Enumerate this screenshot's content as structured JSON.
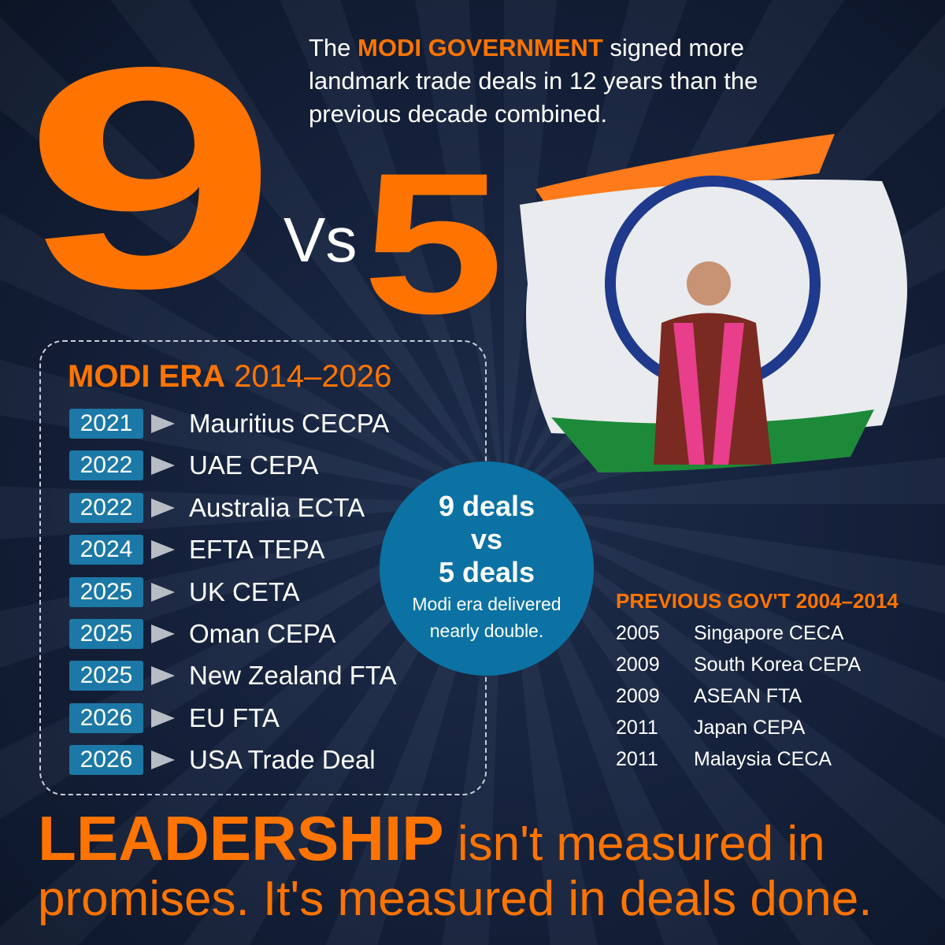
{
  "headline": {
    "big_number_left": "9",
    "vs": "Vs",
    "big_number_right": "5"
  },
  "intro": {
    "prefix": "The ",
    "highlight": "MODI GOVERNMENT",
    "suffix": " signed more landmark trade deals in 12 years than the previous decade combined."
  },
  "modi_era": {
    "title_bold": "MODI ERA",
    "title_years": "2014–2026",
    "deals": [
      {
        "year": "2021",
        "name": "Mauritius CECPA"
      },
      {
        "year": "2022",
        "name": "UAE CEPA"
      },
      {
        "year": "2022",
        "name": "Australia ECTA"
      },
      {
        "year": "2024",
        "name": "EFTA TEPA"
      },
      {
        "year": "2025",
        "name": "UK CETA"
      },
      {
        "year": "2025",
        "name": "Oman CEPA"
      },
      {
        "year": "2025",
        "name": "New Zealand FTA"
      },
      {
        "year": "2026",
        "name": "EU FTA"
      },
      {
        "year": "2026",
        "name": "USA Trade Deal"
      }
    ]
  },
  "comparison": {
    "line1": "9 deals",
    "line2": "vs",
    "line3": "5 deals",
    "caption1": "Modi era delivered",
    "caption2": "nearly double."
  },
  "previous": {
    "title": "PREVIOUS GOV'T 2004–2014",
    "deals": [
      {
        "year": "2005",
        "name": "Singapore CECA"
      },
      {
        "year": "2009",
        "name": "South Korea CEPA"
      },
      {
        "year": "2009",
        "name": "ASEAN FTA"
      },
      {
        "year": "2011",
        "name": "Japan CEPA"
      },
      {
        "year": "2011",
        "name": "Malaysia CECA"
      }
    ]
  },
  "tagline": {
    "bold": "LEADERSHIP",
    "rest1": " isn't measured in",
    "rest2": "promises. It's measured in deals done."
  },
  "colors": {
    "orange": "#ff7400",
    "badge_blue": "#1c78a6",
    "circle_blue": "#0b72a3",
    "background": "#14203a"
  }
}
